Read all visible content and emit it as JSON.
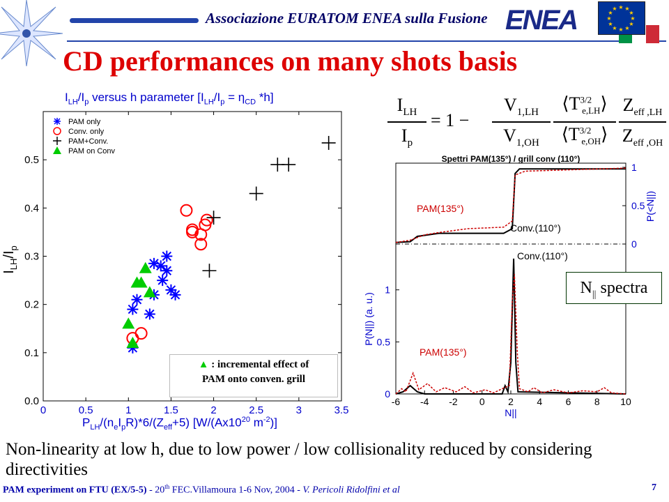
{
  "header": {
    "text": "Associazione EURATOM ENEA sulla Fusione",
    "enea_logo_text": "ENEA"
  },
  "title": "CD performances on many shots basis",
  "left_chart_title": "I LH/Ip versus h parameter [I LH/Ip=ηCD*h]",
  "left_chart_title_parts": {
    "a": "I",
    "a_sub": "LH",
    "b": "/I",
    "b_sub": "p",
    "c": " versus h parameter [I",
    "c_sub": "LH",
    "d": "/I",
    "d_sub": "p",
    "e": " = η",
    "e_sub": "CD",
    "f": " *h]"
  },
  "chart_data": [
    {
      "type": "scatter",
      "xlabel": "P_LH/(n_e I_p R)*6/(Z_eff+5) [W/(Ax10^20 m^-2)]",
      "xlabel_parts": {
        "p": "P",
        "lh": "LH",
        "rest1": "/(n",
        "e": "e",
        "rest2": "I",
        "p2": "p",
        "rest3": "R)*6/(Z",
        "eff": "eff",
        "rest4": "+5) [W/(Ax10",
        "sup": "20",
        "rest5": " m",
        "sup2": "-2",
        "rest6": ")]"
      },
      "ylabel": "I_LH/I_p",
      "xlim": [
        0,
        3.5
      ],
      "ylim": [
        0,
        0.6
      ],
      "x_ticks": [
        "0",
        "0.5",
        "1",
        "1.5",
        "2",
        "2.5",
        "3",
        "3.5"
      ],
      "y_ticks": [
        "0.0",
        "0.1",
        "0.2",
        "0.3",
        "0.4",
        "0.5"
      ],
      "legend": [
        "PAM only",
        "Conv. only",
        "PAM+Conv.",
        "PAM on Conv"
      ],
      "legend_position": "top-left",
      "series": [
        {
          "name": "PAM only",
          "marker": "asterisk",
          "color": "#0000ff",
          "points": [
            [
              1.05,
              0.11
            ],
            [
              1.05,
              0.19
            ],
            [
              1.1,
              0.21
            ],
            [
              1.25,
              0.18
            ],
            [
              1.3,
              0.22
            ],
            [
              1.4,
              0.25
            ],
            [
              1.45,
              0.27
            ],
            [
              1.5,
              0.23
            ],
            [
              1.55,
              0.22
            ],
            [
              1.3,
              0.285
            ],
            [
              1.38,
              0.28
            ],
            [
              1.45,
              0.3
            ]
          ]
        },
        {
          "name": "Conv. only",
          "marker": "circle",
          "color": "#ff0000",
          "points": [
            [
              1.05,
              0.13
            ],
            [
              1.15,
              0.14
            ],
            [
              1.75,
              0.355
            ],
            [
              1.75,
              0.35
            ],
            [
              1.85,
              0.325
            ],
            [
              1.85,
              0.345
            ],
            [
              1.9,
              0.365
            ],
            [
              1.92,
              0.375
            ],
            [
              1.68,
              0.395
            ]
          ]
        },
        {
          "name": "PAM+Conv.",
          "marker": "plus",
          "color": "#000000",
          "points": [
            [
              1.95,
              0.27
            ],
            [
              2.0,
              0.38
            ],
            [
              2.5,
              0.43
            ],
            [
              2.75,
              0.49
            ],
            [
              2.88,
              0.49
            ],
            [
              3.35,
              0.535
            ]
          ]
        },
        {
          "name": "PAM on Conv",
          "marker": "triangle",
          "color": "#00cc00",
          "points": [
            [
              1.0,
              0.16
            ],
            [
              1.05,
              0.12
            ],
            [
              1.1,
              0.245
            ],
            [
              1.15,
              0.245
            ],
            [
              1.2,
              0.275
            ],
            [
              1.25,
              0.225
            ]
          ]
        }
      ],
      "annotation_line1": ": incremental effect of",
      "annotation_line2": "PAM onto conven. grill"
    },
    {
      "type": "line",
      "title": "Spettri PAM(135°) / grill conv (110°)",
      "xlabel": "N||",
      "ylabel": "P(N||) (a. u.)",
      "right_ylabel": "P(<N||)",
      "xlim": [
        -6,
        10
      ],
      "x_ticks": [
        "-6",
        "-4",
        "-2",
        "0",
        "2",
        "4",
        "6",
        "8",
        "10"
      ],
      "y_ticks": [
        "0",
        "0.5",
        "1"
      ],
      "right_ticks": [
        "0",
        "0.5",
        "1"
      ],
      "series": [
        {
          "name": "Conv.(110°)",
          "color": "#000000",
          "style": "solid"
        },
        {
          "name": "PAM(135°)",
          "color": "#cc0000",
          "style": "dotted"
        }
      ],
      "labels": {
        "pam_top": "PAM(135°)",
        "conv_top": "Conv.(110°)",
        "conv_mid": "Conv.(110°)",
        "pam_bottom": "PAM(135°)"
      }
    }
  ],
  "formula": {
    "lhs_num": "I",
    "lhs_num_sub": "LH",
    "lhs_den": "I",
    "lhs_den_sub": "p",
    "eq": "= 1 −",
    "f1_num": "V",
    "f1_num_sub": "1,LH",
    "f1_den": "V",
    "f1_den_sub": "1,OH",
    "f2_num": "T",
    "f2_num_sup": "3/2",
    "f2_num_sub": "e,LH",
    "f2_den": "T",
    "f2_den_sup": "3/2",
    "f2_den_sub": "e,OH",
    "f3_num": "Z",
    "f3_num_sub": "eff ,LH",
    "f3_den": "Z",
    "f3_den_sub": "eff ,OH"
  },
  "spectra_label": "N|| spectra",
  "spectra_label_parts": {
    "n": "N",
    "sub": "||",
    "rest": " spectra"
  },
  "caption": "Non-linearity at low h, due to low power / low collisionality reduced by considering directivities",
  "footer": {
    "bold": "PAM experiment on FTU (EX/5-5)",
    "mid": " - 20",
    "sup": "th",
    "rest": " FEC.Villamoura 1-6 Nov, 2004 - ",
    "italic": "V. Pericoli Ridolfini et al"
  },
  "page_number": "7",
  "colors": {
    "title": "#dd0000",
    "header": "#000066",
    "axis_blue": "#0000cc",
    "pam_only": "#0000ff",
    "conv_only": "#ff0000",
    "pam_conv": "#000000",
    "pam_on_conv": "#00cc00"
  }
}
